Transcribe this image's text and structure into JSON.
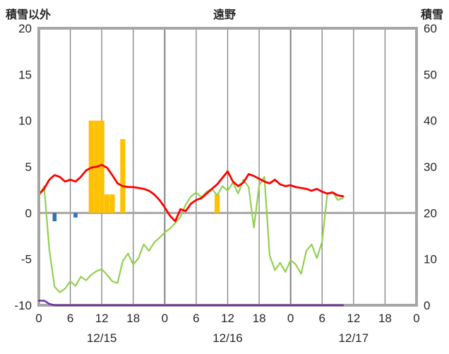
{
  "header": {
    "left": "積雪以外",
    "center": "遠野",
    "right": "積雪"
  },
  "chart_data": {
    "type": "line+bar",
    "title": "遠野",
    "left_axis": {
      "title": "積雪以外",
      "min": -10,
      "max": 20,
      "ticks": [
        {
          "value": 20,
          "label": "20"
        },
        {
          "value": 15,
          "label": "15"
        },
        {
          "value": 10,
          "label": "10"
        },
        {
          "value": 5,
          "label": "5"
        },
        {
          "value": 0,
          "label": "0"
        },
        {
          "value": -5,
          "label": "-5"
        },
        {
          "value": -10,
          "label": "-10"
        }
      ]
    },
    "right_axis": {
      "title": "積雪",
      "min": 0,
      "max": 60,
      "ticks": [
        {
          "value": 60,
          "label": "60"
        },
        {
          "value": 50,
          "label": "50"
        },
        {
          "value": 40,
          "label": "40"
        },
        {
          "value": 30,
          "label": "30"
        },
        {
          "value": 20,
          "label": "20"
        },
        {
          "value": 10,
          "label": "10"
        },
        {
          "value": 0,
          "label": "0"
        }
      ]
    },
    "x_hours_total": 72,
    "x_ticks": [
      {
        "hour": 0,
        "label": "0"
      },
      {
        "hour": 6,
        "label": "6"
      },
      {
        "hour": 12,
        "label": "12"
      },
      {
        "hour": 18,
        "label": "18"
      },
      {
        "hour": 24,
        "label": "0"
      },
      {
        "hour": 30,
        "label": "6"
      },
      {
        "hour": 36,
        "label": "12"
      },
      {
        "hour": 42,
        "label": "18"
      },
      {
        "hour": 48,
        "label": "0"
      },
      {
        "hour": 54,
        "label": "6"
      },
      {
        "hour": 60,
        "label": "12"
      },
      {
        "hour": 66,
        "label": "18"
      },
      {
        "hour": 72,
        "label": "0"
      }
    ],
    "date_labels": [
      {
        "center_hour": 12,
        "label": "12/15"
      },
      {
        "center_hour": 36,
        "label": "12/16"
      },
      {
        "center_hour": 60,
        "label": "12/17"
      }
    ],
    "colors": {
      "frame": "#A6A6A6",
      "grid": "#808080",
      "text": "#262626",
      "red": "#FF0000",
      "green": "#92D050",
      "purple": "#7030A0",
      "orange": "#FFC000",
      "blue": "#2E75B6"
    },
    "series": {
      "red_line": {
        "axis": "left",
        "color": "#FF0000",
        "start_hour": 0,
        "step_hours": 1,
        "values": [
          2.0,
          2.6,
          3.6,
          4.1,
          3.9,
          3.4,
          3.6,
          3.4,
          3.9,
          4.6,
          4.9,
          5.0,
          5.2,
          4.9,
          4.1,
          3.2,
          2.9,
          2.8,
          2.8,
          2.7,
          2.6,
          2.4,
          2.0,
          1.4,
          0.6,
          -0.3,
          -0.9,
          0.4,
          0.2,
          1.0,
          1.4,
          1.6,
          2.1,
          2.6,
          3.1,
          3.8,
          4.5,
          3.4,
          2.9,
          3.3,
          4.2,
          4.0,
          3.7,
          3.4,
          3.2,
          3.6,
          3.1,
          2.9,
          3.0,
          2.8,
          2.7,
          2.6,
          2.4,
          2.6,
          2.3,
          2.1,
          2.2,
          1.9,
          1.8
        ]
      },
      "green_line": {
        "axis": "left",
        "color": "#92D050",
        "start_hour": 0,
        "step_hours": 1,
        "values": [
          1.8,
          2.9,
          -4.0,
          -8.0,
          -8.6,
          -8.2,
          -7.4,
          -7.9,
          -6.9,
          -7.3,
          -6.7,
          -6.3,
          -6.1,
          -6.7,
          -7.4,
          -7.6,
          -5.2,
          -4.4,
          -5.6,
          -4.9,
          -3.4,
          -4.1,
          -3.2,
          -2.7,
          -2.1,
          -1.7,
          -1.1,
          -0.4,
          0.9,
          1.8,
          2.2,
          1.7,
          2.3,
          2.6,
          1.9,
          2.9,
          2.4,
          3.3,
          2.1,
          3.6,
          2.8,
          -1.6,
          3.0,
          3.9,
          -4.6,
          -6.2,
          -5.4,
          -6.4,
          -5.1,
          -5.6,
          -6.6,
          -4.1,
          -3.4,
          -4.9,
          -3.1,
          2.1,
          2.3,
          1.4,
          1.6
        ]
      },
      "purple_line": {
        "axis": "right",
        "color": "#7030A0",
        "points": [
          [
            0,
            1.0
          ],
          [
            1,
            1.0
          ],
          [
            2,
            0.3
          ],
          [
            3,
            0
          ],
          [
            58,
            0
          ]
        ]
      },
      "orange_bars": {
        "axis": "left",
        "color": "#FFC000",
        "bars": [
          [
            10,
            10
          ],
          [
            11,
            10
          ],
          [
            12,
            10
          ],
          [
            13,
            2
          ],
          [
            14,
            2
          ],
          [
            16,
            8
          ],
          [
            34,
            2
          ]
        ]
      },
      "blue_bars": {
        "axis": "left",
        "color": "#2E75B6",
        "bars": [
          [
            3,
            -0.9
          ],
          [
            7,
            -0.5
          ]
        ]
      }
    }
  }
}
